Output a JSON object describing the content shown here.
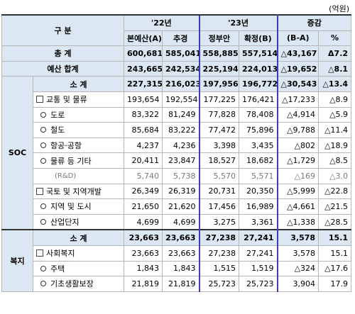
{
  "unit": "(억원)",
  "header": {
    "category": "구 분",
    "year22": "'22년",
    "year23": "'23년",
    "change": "증감",
    "col_original": "본예산(A)",
    "col_supplementary": "추경",
    "col_gov": "정부안",
    "col_final": "확정(B)",
    "col_diff": "(B-A)",
    "col_pct": "%"
  },
  "total": {
    "label": "총 계",
    "values": [
      "600,681",
      "585,041",
      "558,885",
      "557,514",
      "△43,167",
      "Δ7.2"
    ]
  },
  "budget_sum": {
    "label": "예산 합계",
    "values": [
      "243,665",
      "242,534",
      "225,194",
      "224,013",
      "△19,652",
      "△8.1"
    ]
  },
  "soc": {
    "section": "SOC",
    "rows": [
      {
        "label": "소 계",
        "values": [
          "227,315",
          "216,023",
          "197,956",
          "196,772",
          "△30,543",
          "△13.4"
        ]
      },
      {
        "label": "교통 및 물류",
        "values": [
          "193,654",
          "192,554",
          "177,225",
          "176,421",
          "△17,233",
          "△8.9"
        ]
      },
      {
        "label": "도로",
        "values": [
          "83,322",
          "81,249",
          "77,828",
          "78,408",
          "△4,914",
          "△5.9"
        ]
      },
      {
        "label": "철도",
        "values": [
          "85,684",
          "83,222",
          "77,472",
          "75,896",
          "△9,788",
          "△11.4"
        ]
      },
      {
        "label": "항공·공항",
        "values": [
          "4,237",
          "4,236",
          "3,398",
          "3,435",
          "△802",
          "△18.9"
        ]
      },
      {
        "label": "물류 등 기타",
        "values": [
          "20,411",
          "23,847",
          "18,527",
          "18,682",
          "△1,729",
          "△8.5"
        ]
      },
      {
        "label": "(R&D)",
        "values": [
          "5,740",
          "5,738",
          "5,570",
          "5,571",
          "△169",
          "△3.0"
        ]
      },
      {
        "label": "국토 및 지역개발",
        "values": [
          "26,349",
          "26,319",
          "20,731",
          "20,350",
          "△5,999",
          "△22.8"
        ]
      },
      {
        "label": "지역 및 도시",
        "values": [
          "21,650",
          "21,620",
          "17,456",
          "16,989",
          "△4,661",
          "△21.5"
        ]
      },
      {
        "label": "산업단지",
        "values": [
          "4,699",
          "4,699",
          "3,275",
          "3,361",
          "△1,338",
          "△28.5"
        ]
      }
    ]
  },
  "welfare": {
    "section": "복지",
    "rows": [
      {
        "label": "소 계",
        "values": [
          "23,663",
          "23,663",
          "27,238",
          "27,241",
          "3,578",
          "15.1"
        ]
      },
      {
        "label": "사회복지",
        "values": [
          "23,663",
          "23,663",
          "27,238",
          "27,241",
          "3,578",
          "15.1"
        ]
      },
      {
        "label": "주택",
        "values": [
          "1,843",
          "1,843",
          "1,515",
          "1,519",
          "△324",
          "△17.6"
        ]
      },
      {
        "label": "기초생활보장",
        "values": [
          "21,819",
          "21,819",
          "25,723",
          "25,723",
          "3,904",
          "17.9"
        ]
      }
    ]
  }
}
